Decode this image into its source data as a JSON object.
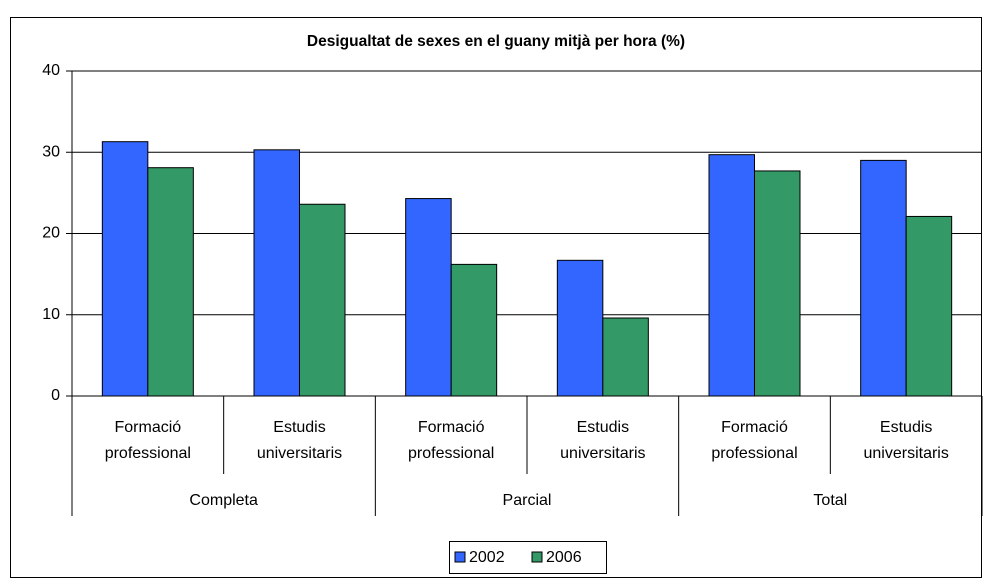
{
  "chart_data": {
    "type": "bar",
    "title": "Desigualtat de sexes en el guany mitjà per hora (%)",
    "categories": [
      "Formació professional",
      "Estudis universitaris",
      "Formació professional",
      "Estudis universitaris",
      "Formació professional",
      "Estudis universitaris"
    ],
    "category_groups": [
      "Completa",
      "Parcial",
      "Total"
    ],
    "series": [
      {
        "name": "2002",
        "color": "#3366ff",
        "values": [
          31.3,
          30.3,
          24.3,
          16.7,
          29.7,
          29.0
        ]
      },
      {
        "name": "2006",
        "color": "#339966",
        "values": [
          28.1,
          23.6,
          16.2,
          9.6,
          27.7,
          22.1
        ]
      }
    ],
    "ylim": [
      0,
      40
    ],
    "yticks": [
      0,
      10,
      20,
      30,
      40
    ],
    "grid": true,
    "legend": "bottom"
  }
}
